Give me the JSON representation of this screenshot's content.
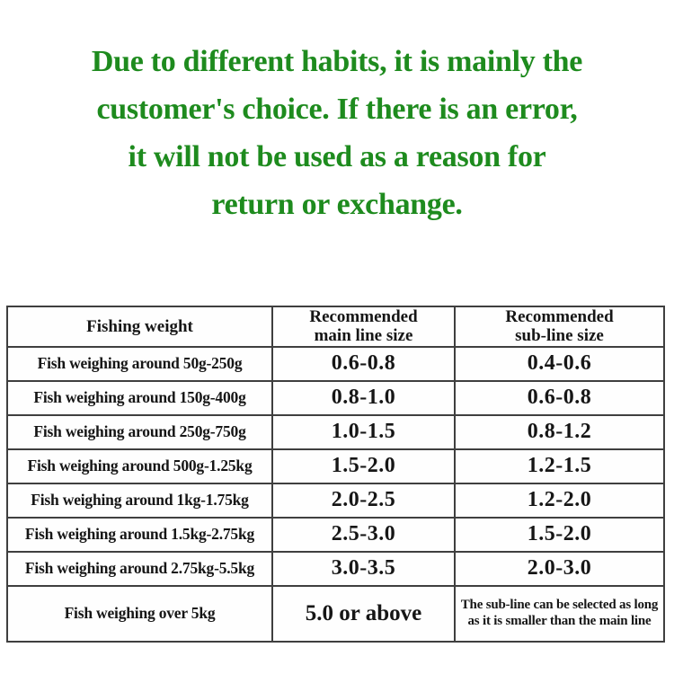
{
  "notice": {
    "color": "#1e8b1e",
    "lines": [
      "Due to different habits, it is mainly the",
      "customer's choice. If there is an error,",
      "it will not be used as a reason for",
      "return or exchange."
    ]
  },
  "table": {
    "headers": {
      "col1": "Fishing weight",
      "col2_line1": "Recommended",
      "col2_line2": "main line size",
      "col3_line1": "Recommended",
      "col3_line2": "sub-line size"
    },
    "rows": [
      {
        "weight": "Fish weighing around 50g-250g",
        "main": "0.6-0.8",
        "sub": "0.4-0.6"
      },
      {
        "weight": "Fish weighing around 150g-400g",
        "main": "0.8-1.0",
        "sub": "0.6-0.8"
      },
      {
        "weight": "Fish weighing around 250g-750g",
        "main": "1.0-1.5",
        "sub": "0.8-1.2"
      },
      {
        "weight": "Fish weighing around 500g-1.25kg",
        "main": "1.5-2.0",
        "sub": "1.2-1.5"
      },
      {
        "weight": "Fish weighing around 1kg-1.75kg",
        "main": "2.0-2.5",
        "sub": "1.2-2.0"
      },
      {
        "weight": "Fish weighing around 1.5kg-2.75kg",
        "main": "2.5-3.0",
        "sub": "1.5-2.0"
      },
      {
        "weight": "Fish weighing around 2.75kg-5.5kg",
        "main": "3.0-3.5",
        "sub": "2.0-3.0"
      },
      {
        "weight": "Fish weighing over 5kg",
        "main": "5.0 or above",
        "sub": "The sub-line can be selected as long as it is smaller than the main line"
      }
    ]
  }
}
